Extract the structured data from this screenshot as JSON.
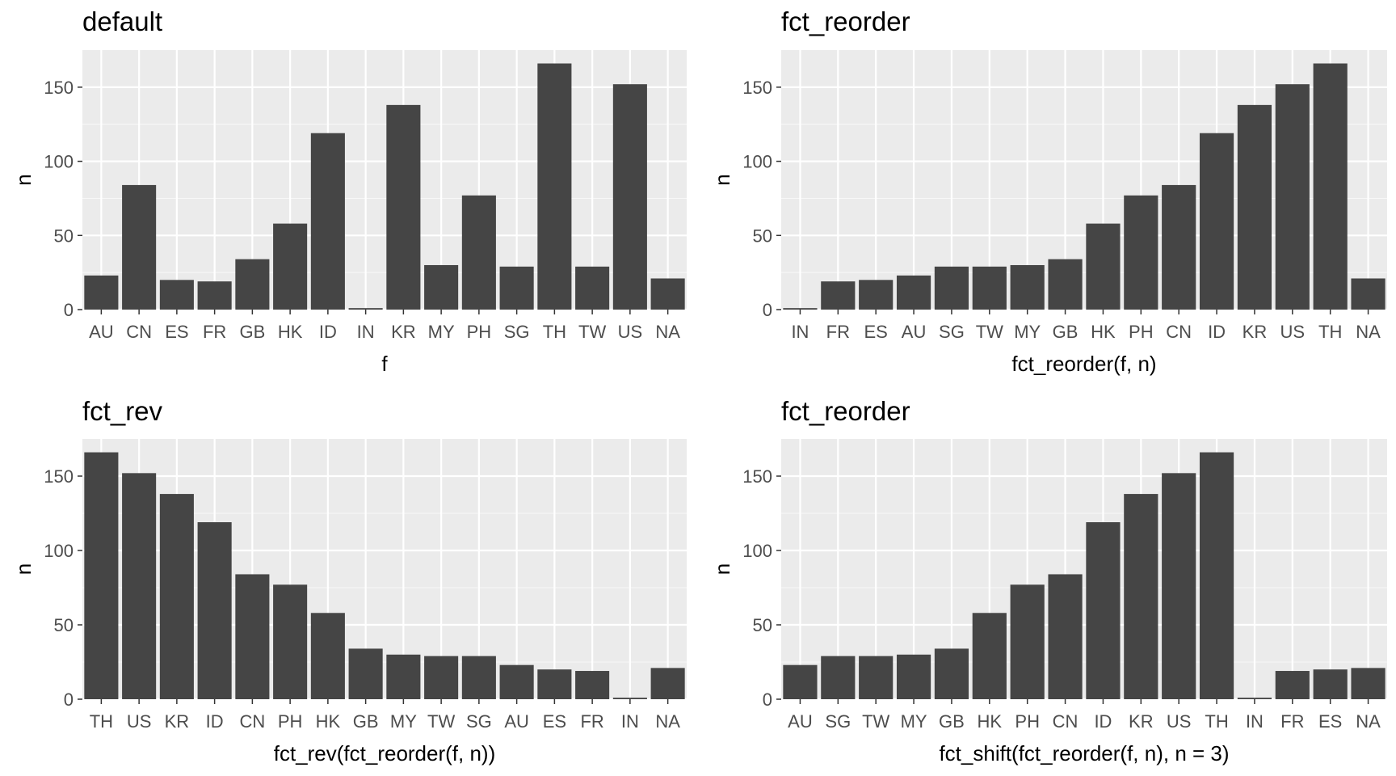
{
  "chart_data": [
    {
      "type": "bar",
      "title": "default",
      "xlabel": "f",
      "ylabel": "n",
      "ylim": [
        0,
        175
      ],
      "yticks": [
        0,
        50,
        100,
        150
      ],
      "grid": true,
      "categories": [
        "AU",
        "CN",
        "ES",
        "FR",
        "GB",
        "HK",
        "ID",
        "IN",
        "KR",
        "MY",
        "PH",
        "SG",
        "TH",
        "TW",
        "US",
        "NA"
      ],
      "values": [
        23,
        84,
        20,
        19,
        34,
        58,
        119,
        1,
        138,
        30,
        77,
        29,
        166,
        29,
        152,
        21
      ],
      "colors": {
        "bar": "#454545",
        "panel": "#ebebeb",
        "grid_major": "#ffffff"
      }
    },
    {
      "type": "bar",
      "title": "fct_reorder",
      "xlabel": "fct_reorder(f, n)",
      "ylabel": "n",
      "ylim": [
        0,
        175
      ],
      "yticks": [
        0,
        50,
        100,
        150
      ],
      "grid": true,
      "categories": [
        "IN",
        "FR",
        "ES",
        "AU",
        "SG",
        "TW",
        "MY",
        "GB",
        "HK",
        "PH",
        "CN",
        "ID",
        "KR",
        "US",
        "TH",
        "NA"
      ],
      "values": [
        1,
        19,
        20,
        23,
        29,
        29,
        30,
        34,
        58,
        77,
        84,
        119,
        138,
        152,
        166,
        21
      ],
      "colors": {
        "bar": "#454545",
        "panel": "#ebebeb",
        "grid_major": "#ffffff"
      }
    },
    {
      "type": "bar",
      "title": "fct_rev",
      "xlabel": "fct_rev(fct_reorder(f, n))",
      "ylabel": "n",
      "ylim": [
        0,
        175
      ],
      "yticks": [
        0,
        50,
        100,
        150
      ],
      "grid": true,
      "categories": [
        "TH",
        "US",
        "KR",
        "ID",
        "CN",
        "PH",
        "HK",
        "GB",
        "MY",
        "TW",
        "SG",
        "AU",
        "ES",
        "FR",
        "IN",
        "NA"
      ],
      "values": [
        166,
        152,
        138,
        119,
        84,
        77,
        58,
        34,
        30,
        29,
        29,
        23,
        20,
        19,
        1,
        21
      ],
      "colors": {
        "bar": "#454545",
        "panel": "#ebebeb",
        "grid_major": "#ffffff"
      }
    },
    {
      "type": "bar",
      "title": "fct_reorder",
      "xlabel": "fct_shift(fct_reorder(f, n), n = 3)",
      "ylabel": "n",
      "ylim": [
        0,
        175
      ],
      "yticks": [
        0,
        50,
        100,
        150
      ],
      "grid": true,
      "categories": [
        "AU",
        "SG",
        "TW",
        "MY",
        "GB",
        "HK",
        "PH",
        "CN",
        "ID",
        "KR",
        "US",
        "TH",
        "IN",
        "FR",
        "ES",
        "NA"
      ],
      "values": [
        23,
        29,
        29,
        30,
        34,
        58,
        77,
        84,
        119,
        138,
        152,
        166,
        1,
        19,
        20,
        21
      ],
      "colors": {
        "bar": "#454545",
        "panel": "#ebebeb",
        "grid_major": "#ffffff"
      }
    }
  ]
}
